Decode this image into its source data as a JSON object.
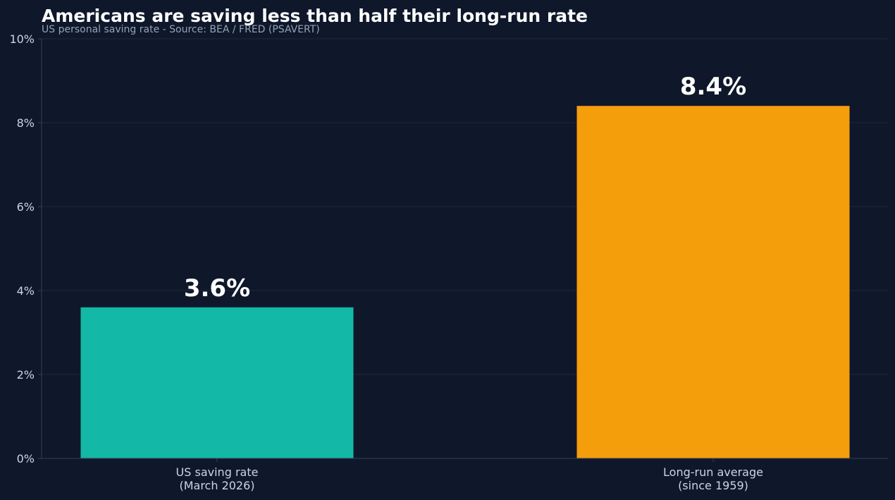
{
  "chart_data": {
    "type": "bar",
    "title": "Americans are saving less than half their long-run rate",
    "subtitle": "US personal saving rate  -  Source: BEA / FRED (PSAVERT)",
    "categories": [
      [
        "US saving rate",
        "(March 2026)"
      ],
      [
        "Long-run average",
        "(since 1959)"
      ]
    ],
    "values": [
      3.6,
      8.4
    ],
    "value_labels": [
      "3.6%",
      "8.4%"
    ],
    "bar_colors": [
      "#14b8a6",
      "#f59e0b"
    ],
    "ylim": [
      0,
      10
    ],
    "yticks": [
      0,
      2,
      4,
      6,
      8,
      10
    ],
    "ytick_labels": [
      "0%",
      "2%",
      "4%",
      "6%",
      "8%",
      "10%"
    ],
    "xlabel": "",
    "ylabel": "",
    "grid": true,
    "legend": "none"
  },
  "colors": {
    "background": "#0f172a",
    "grid": "#1e293b",
    "axis": "#334155",
    "text": "#cbd5e1",
    "title": "#ffffff",
    "subtitle": "#94a3b8"
  }
}
